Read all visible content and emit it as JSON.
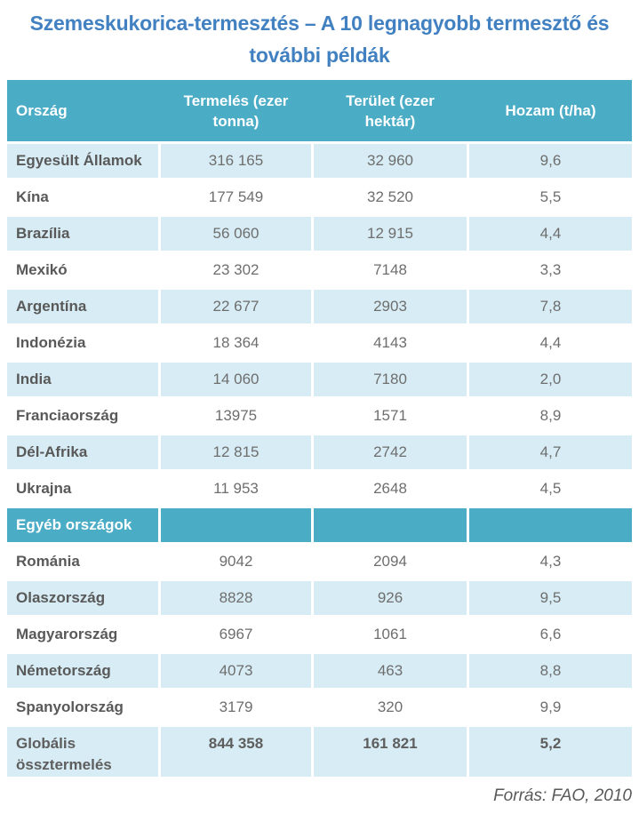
{
  "header": {
    "title_lines": [
      "Szemeskukorica-termesztés – A 10 legnagyobb termesztő és",
      "további példák"
    ]
  },
  "colors": {
    "title_blue": "#4181C1",
    "header_teal": "#4BACC6",
    "stripe_light_blue": "#D7ECF4",
    "country_text_gray": "#595959",
    "number_text_gray": "#6E6E6E"
  },
  "chart_data": {
    "type": "table",
    "title": "Szemeskukorica-termesztés – A 10 legnagyobb termesztő és további példák",
    "columns": [
      "Ország",
      "Termelés (ezer tonna)",
      "Terület (ezer hektár)",
      "Hozam (t/ha)"
    ],
    "rows": [
      {
        "kind": "data",
        "country": "Egyesült Államok",
        "production": "316 165",
        "area": "32 960",
        "yield": "9,6"
      },
      {
        "kind": "data",
        "country": "Kína",
        "production": "177 549",
        "area": "32 520",
        "yield": "5,5"
      },
      {
        "kind": "data",
        "country": "Brazília",
        "production": "56 060",
        "area": "12 915",
        "yield": "4,4"
      },
      {
        "kind": "data",
        "country": "Mexikó",
        "production": "23 302",
        "area": "7148",
        "yield": "3,3"
      },
      {
        "kind": "data",
        "country": "Argentína",
        "production": "22 677",
        "area": "2903",
        "yield": "7,8"
      },
      {
        "kind": "data",
        "country": "Indonézia",
        "production": "18 364",
        "area": "4143",
        "yield": "4,4"
      },
      {
        "kind": "data",
        "country": "India",
        "production": "14 060",
        "area": "7180",
        "yield": "2,0"
      },
      {
        "kind": "data",
        "country": "Franciaország",
        "production": "13975",
        "area": "1571",
        "yield": "8,9"
      },
      {
        "kind": "data",
        "country": "Dél-Afrika",
        "production": "12 815",
        "area": "2742",
        "yield": "4,7"
      },
      {
        "kind": "data",
        "country": "Ukrajna",
        "production": "11 953",
        "area": "2648",
        "yield": "4,5"
      },
      {
        "kind": "section",
        "country": "Egyéb országok",
        "production": "",
        "area": "",
        "yield": ""
      },
      {
        "kind": "data",
        "country": "Románia",
        "production": "9042",
        "area": "2094",
        "yield": "4,3"
      },
      {
        "kind": "data",
        "country": "Olaszország",
        "production": "8828",
        "area": "926",
        "yield": "9,5"
      },
      {
        "kind": "data",
        "country": "Magyarország",
        "production": "6967",
        "area": "1061",
        "yield": "6,6"
      },
      {
        "kind": "data",
        "country": "Németország",
        "production": "4073",
        "area": "463",
        "yield": "8,8"
      },
      {
        "kind": "data",
        "country": "Spanyolország",
        "production": "3179",
        "area": "320",
        "yield": "9,9"
      },
      {
        "kind": "total",
        "country": "Globális össztermelés",
        "production": "844 358",
        "area": "161 821",
        "yield": "5,2"
      }
    ],
    "source": "Forrás: FAO, 2010"
  }
}
